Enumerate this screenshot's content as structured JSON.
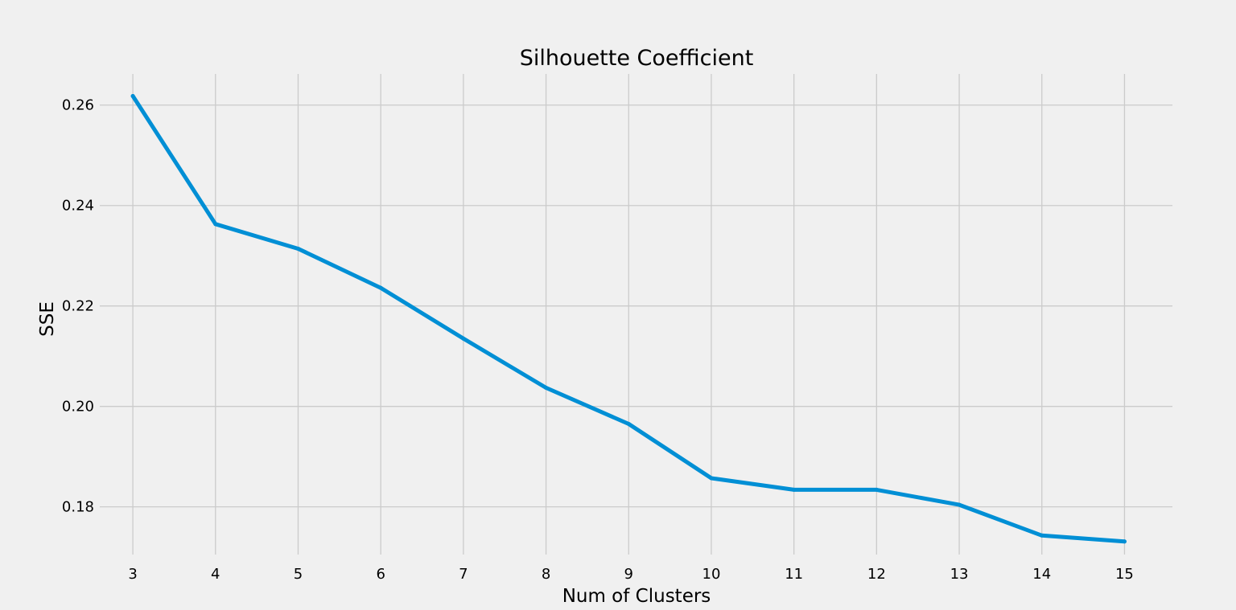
{
  "chart_data": {
    "type": "line",
    "title": "Silhouette Coefficient",
    "xlabel": "Num of Clusters",
    "ylabel": "SSE",
    "x": [
      3,
      4,
      5,
      6,
      7,
      8,
      9,
      10,
      11,
      12,
      13,
      14,
      15
    ],
    "series": [
      {
        "values": [
          0.2618,
          0.2363,
          0.2314,
          0.2236,
          0.2135,
          0.2037,
          0.1965,
          0.1857,
          0.1834,
          0.1834,
          0.1804,
          0.1743,
          0.1731
        ]
      }
    ],
    "xticks": [
      "3",
      "4",
      "5",
      "6",
      "7",
      "8",
      "9",
      "10",
      "11",
      "12",
      "13",
      "14",
      "15"
    ],
    "yticks": [
      "0.18",
      "0.20",
      "0.22",
      "0.24",
      "0.26"
    ],
    "xlim": [
      2.6,
      15.58
    ],
    "ylim": [
      0.1705,
      0.2662
    ],
    "grid": true,
    "colors": {
      "background": "#f0f0f0",
      "grid": "#cbcbcb",
      "line": "#008fd5"
    }
  }
}
